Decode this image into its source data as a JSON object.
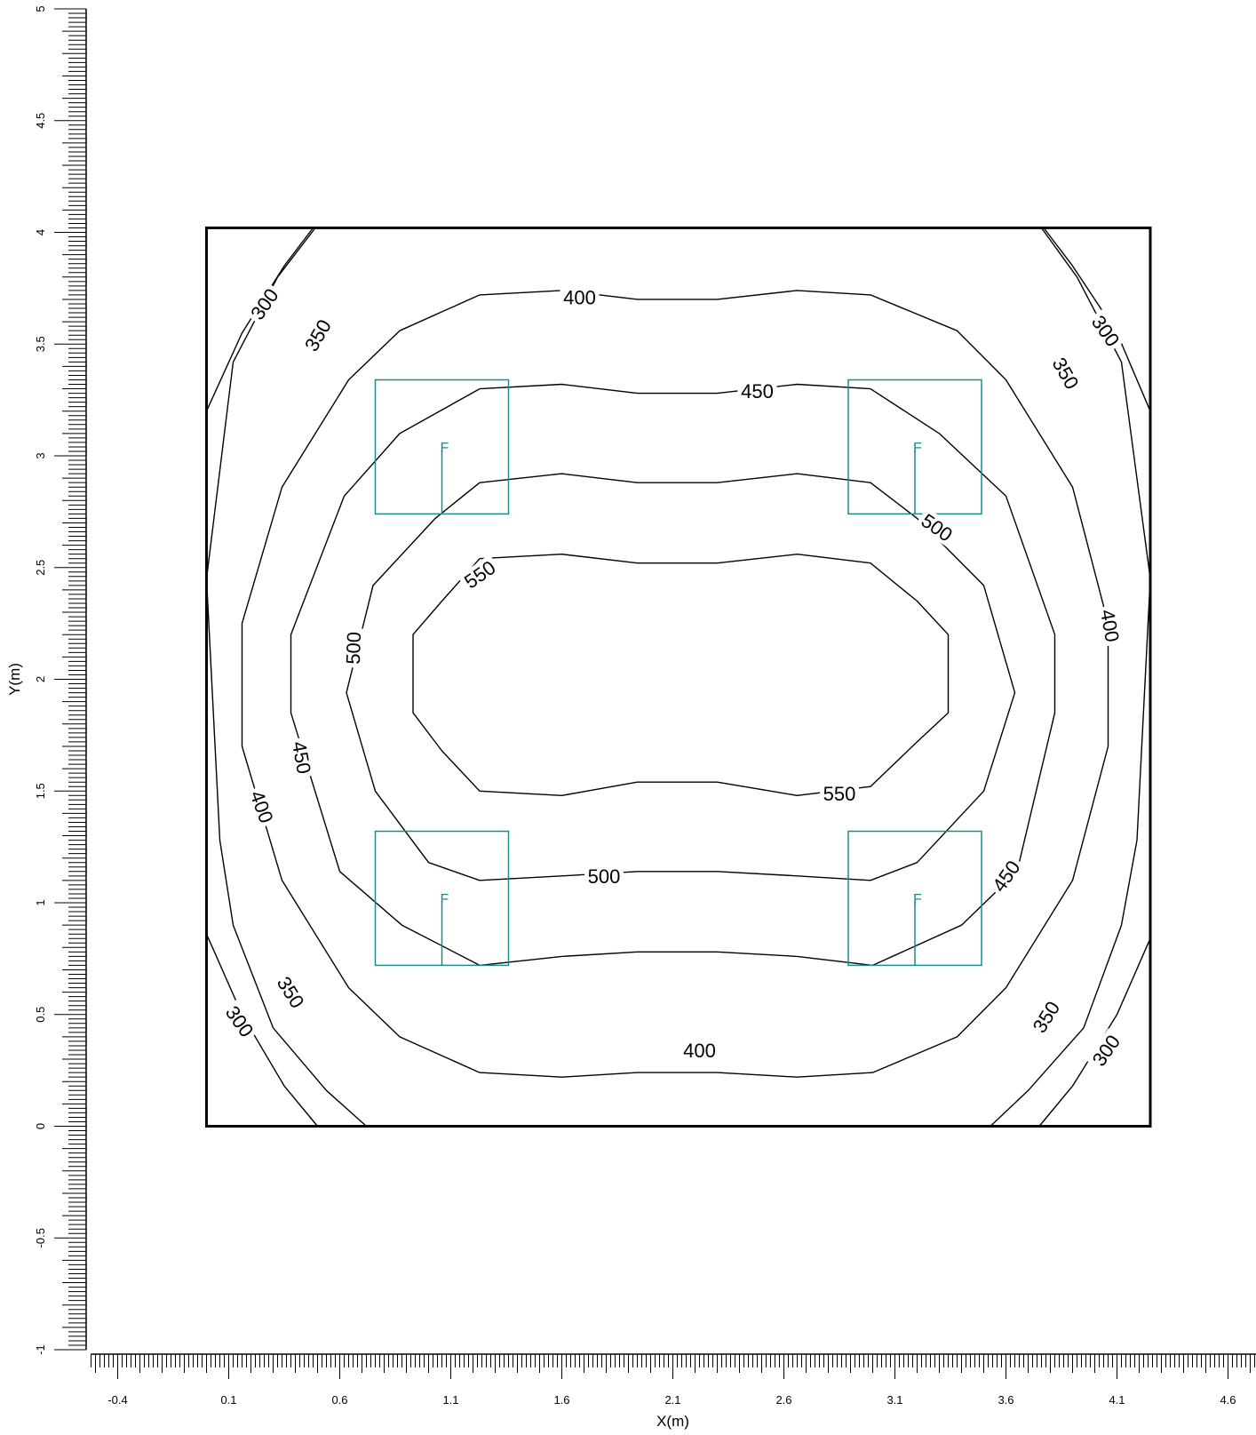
{
  "chart_data": {
    "type": "contour",
    "xlabel": "X(m)",
    "ylabel": "Y(m)",
    "xlim": [
      -0.52,
      4.75
    ],
    "ylim": [
      -1,
      5
    ],
    "x_tick_labels": [
      "-0.4",
      "0.1",
      "0.6",
      "1.1",
      "1.6",
      "2.1",
      "2.6",
      "3.1",
      "3.6",
      "4.1",
      "4.6"
    ],
    "y_tick_labels": [
      "-1",
      "-0.5",
      "0",
      "0.5",
      "1",
      "1.5",
      "2",
      "2.5",
      "3",
      "3.5",
      "4",
      "4.5",
      "5"
    ],
    "room": {
      "x": [
        0,
        4.25
      ],
      "y": [
        0,
        4.02
      ]
    },
    "contour_levels": [
      "300",
      "350",
      "400",
      "450",
      "500",
      "550"
    ],
    "luminaire_label": "F",
    "luminaire_color": "#1a8c8c",
    "luminaires": [
      {
        "x": [
          0.76,
          1.36
        ],
        "y": [
          2.74,
          3.34
        ],
        "cx": 1.06,
        "cy": 3.04
      },
      {
        "x": [
          2.89,
          3.49
        ],
        "y": [
          2.74,
          3.34
        ],
        "cx": 3.19,
        "cy": 3.04
      },
      {
        "x": [
          0.76,
          1.36
        ],
        "y": [
          0.72,
          1.32
        ],
        "cx": 1.06,
        "cy": 1.02
      },
      {
        "x": [
          2.89,
          3.49
        ],
        "y": [
          0.72,
          1.32
        ],
        "cx": 3.19,
        "cy": 1.02
      }
    ],
    "contours": [
      {
        "level": "300",
        "points": [
          [
            0,
            3.2
          ],
          [
            0.16,
            3.55
          ],
          [
            0.35,
            3.85
          ],
          [
            0.48,
            4.02
          ]
        ]
      },
      {
        "level": "300",
        "points": [
          [
            3.77,
            4.02
          ],
          [
            3.9,
            3.85
          ],
          [
            4.1,
            3.55
          ],
          [
            4.25,
            3.2
          ]
        ]
      },
      {
        "level": "300",
        "points": [
          [
            0,
            0.86
          ],
          [
            0.16,
            0.5
          ],
          [
            0.35,
            0.18
          ],
          [
            0.5,
            0
          ]
        ]
      },
      {
        "level": "300",
        "points": [
          [
            3.75,
            0
          ],
          [
            3.9,
            0.18
          ],
          [
            4.1,
            0.5
          ],
          [
            4.25,
            0.84
          ]
        ]
      },
      {
        "level": "350",
        "points": [
          [
            0.49,
            4.02
          ],
          [
            0.32,
            3.8
          ],
          [
            0.12,
            3.42
          ],
          [
            0,
            2.45
          ],
          [
            0.06,
            1.28
          ],
          [
            0.12,
            0.9
          ],
          [
            0.3,
            0.44
          ],
          [
            0.54,
            0.16
          ],
          [
            0.72,
            0
          ]
        ]
      },
      {
        "level": "350",
        "points": [
          [
            3.53,
            0
          ],
          [
            3.7,
            0.16
          ],
          [
            3.95,
            0.44
          ],
          [
            4.12,
            0.9
          ],
          [
            4.19,
            1.28
          ],
          [
            4.25,
            2.45
          ],
          [
            4.12,
            3.42
          ],
          [
            3.92,
            3.8
          ],
          [
            3.76,
            4.02
          ]
        ]
      },
      {
        "level": "350",
        "points": [
          [
            0.49,
            4.02
          ],
          [
            1.1,
            4.02
          ],
          [
            2,
            4.02
          ],
          [
            3.1,
            4.02
          ],
          [
            3.76,
            4.02
          ]
        ]
      },
      {
        "level": "350",
        "points": [
          [
            0.72,
            0
          ],
          [
            1.3,
            0
          ],
          [
            2.1,
            0
          ],
          [
            2.9,
            0
          ],
          [
            3.53,
            0
          ]
        ]
      },
      {
        "level": "400",
        "points": [
          [
            1.23,
            3.72
          ],
          [
            1.6,
            3.74
          ],
          [
            1.94,
            3.7
          ],
          [
            2.3,
            3.7
          ],
          [
            2.66,
            3.74
          ],
          [
            2.99,
            3.72
          ],
          [
            3.38,
            3.56
          ],
          [
            3.6,
            3.34
          ],
          [
            3.9,
            2.86
          ],
          [
            4.06,
            2.25
          ],
          [
            4.06,
            1.7
          ],
          [
            3.9,
            1.1
          ],
          [
            3.6,
            0.62
          ],
          [
            3.38,
            0.4
          ],
          [
            3,
            0.24
          ],
          [
            2.66,
            0.22
          ],
          [
            2.3,
            0.24
          ],
          [
            1.94,
            0.24
          ],
          [
            1.6,
            0.22
          ],
          [
            1.23,
            0.24
          ],
          [
            0.87,
            0.4
          ],
          [
            0.64,
            0.62
          ],
          [
            0.34,
            1.1
          ],
          [
            0.16,
            1.7
          ],
          [
            0.16,
            2.25
          ],
          [
            0.34,
            2.86
          ],
          [
            0.64,
            3.34
          ],
          [
            0.87,
            3.56
          ],
          [
            1.23,
            3.72
          ]
        ]
      },
      {
        "level": "450",
        "points": [
          [
            1.23,
            3.3
          ],
          [
            1.6,
            3.32
          ],
          [
            1.94,
            3.28
          ],
          [
            2.3,
            3.28
          ],
          [
            2.66,
            3.32
          ],
          [
            2.99,
            3.3
          ],
          [
            3.3,
            3.1
          ],
          [
            3.6,
            2.82
          ],
          [
            3.82,
            2.2
          ],
          [
            3.82,
            1.85
          ],
          [
            3.65,
            1.14
          ],
          [
            3.4,
            0.9
          ],
          [
            3,
            0.72
          ],
          [
            2.66,
            0.76
          ],
          [
            2.3,
            0.78
          ],
          [
            1.94,
            0.78
          ],
          [
            1.6,
            0.76
          ],
          [
            1.23,
            0.72
          ],
          [
            0.88,
            0.9
          ],
          [
            0.6,
            1.14
          ],
          [
            0.38,
            1.85
          ],
          [
            0.38,
            2.2
          ],
          [
            0.62,
            2.82
          ],
          [
            0.87,
            3.1
          ],
          [
            1.23,
            3.3
          ]
        ]
      },
      {
        "level": "500",
        "points": [
          [
            1.23,
            2.88
          ],
          [
            1.6,
            2.92
          ],
          [
            1.94,
            2.88
          ],
          [
            2.3,
            2.88
          ],
          [
            2.66,
            2.92
          ],
          [
            2.99,
            2.88
          ],
          [
            3.2,
            2.72
          ],
          [
            3.5,
            2.42
          ],
          [
            3.64,
            1.94
          ],
          [
            3.5,
            1.5
          ],
          [
            3.2,
            1.18
          ],
          [
            2.99,
            1.1
          ],
          [
            2.66,
            1.12
          ],
          [
            2.3,
            1.14
          ],
          [
            1.94,
            1.14
          ],
          [
            1.6,
            1.12
          ],
          [
            1.23,
            1.1
          ],
          [
            1,
            1.18
          ],
          [
            0.76,
            1.5
          ],
          [
            0.63,
            1.94
          ],
          [
            0.75,
            2.42
          ],
          [
            1.03,
            2.72
          ],
          [
            1.23,
            2.88
          ]
        ]
      },
      {
        "level": "550",
        "points": [
          [
            1.23,
            2.54
          ],
          [
            1.6,
            2.56
          ],
          [
            1.94,
            2.52
          ],
          [
            2.3,
            2.52
          ],
          [
            2.66,
            2.56
          ],
          [
            2.99,
            2.52
          ],
          [
            3.2,
            2.35
          ],
          [
            3.34,
            2.2
          ],
          [
            3.34,
            1.85
          ],
          [
            3.2,
            1.72
          ],
          [
            2.99,
            1.52
          ],
          [
            2.66,
            1.48
          ],
          [
            2.3,
            1.54
          ],
          [
            1.94,
            1.54
          ],
          [
            1.6,
            1.48
          ],
          [
            1.23,
            1.5
          ],
          [
            1.06,
            1.68
          ],
          [
            0.93,
            1.85
          ],
          [
            0.93,
            2.2
          ],
          [
            1.06,
            2.35
          ],
          [
            1.23,
            2.54
          ]
        ]
      }
    ],
    "contour_labels": [
      {
        "text": "300",
        "x": 0.26,
        "y": 3.68,
        "rot": -55
      },
      {
        "text": "300",
        "x": 4.05,
        "y": 3.56,
        "rot": 55
      },
      {
        "text": "300",
        "x": 0.15,
        "y": 0.47,
        "rot": 55
      },
      {
        "text": "300",
        "x": 4.05,
        "y": 0.34,
        "rot": -55
      },
      {
        "text": "350",
        "x": 0.5,
        "y": 3.54,
        "rot": -60
      },
      {
        "text": "350",
        "x": 3.87,
        "y": 3.37,
        "rot": 60
      },
      {
        "text": "350",
        "x": 0.38,
        "y": 0.6,
        "rot": 58
      },
      {
        "text": "350",
        "x": 3.78,
        "y": 0.49,
        "rot": -58
      },
      {
        "text": "400",
        "x": 1.68,
        "y": 3.71,
        "rot": 0
      },
      {
        "text": "400",
        "x": 2.22,
        "y": 0.34,
        "rot": 0
      },
      {
        "text": "400",
        "x": 4.07,
        "y": 2.24,
        "rot": 80
      },
      {
        "text": "400",
        "x": 0.25,
        "y": 1.43,
        "rot": 70
      },
      {
        "text": "450",
        "x": 2.48,
        "y": 3.29,
        "rot": 0
      },
      {
        "text": "450",
        "x": 0.43,
        "y": 1.65,
        "rot": 80
      },
      {
        "text": "450",
        "x": 3.6,
        "y": 1.12,
        "rot": -55
      },
      {
        "text": "500",
        "x": 1.79,
        "y": 1.12,
        "rot": 0
      },
      {
        "text": "500",
        "x": 3.29,
        "y": 2.68,
        "rot": 35
      },
      {
        "text": "500",
        "x": 0.66,
        "y": 2.14,
        "rot": -88
      },
      {
        "text": "550",
        "x": 1.23,
        "y": 2.47,
        "rot": -35
      },
      {
        "text": "550",
        "x": 2.85,
        "y": 1.49,
        "rot": 0
      }
    ]
  }
}
